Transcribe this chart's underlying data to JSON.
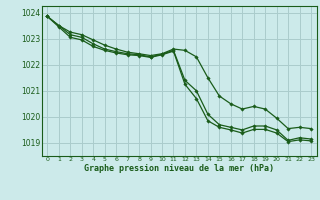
{
  "title": "Graphe pression niveau de la mer (hPa)",
  "bg_color": "#cceaea",
  "grid_color": "#aacccc",
  "line_color": "#1a5c1a",
  "marker_color": "#1a5c1a",
  "xlim": [
    -0.5,
    23.5
  ],
  "ylim": [
    1018.5,
    1024.25
  ],
  "yticks": [
    1019,
    1020,
    1021,
    1022,
    1023,
    1024
  ],
  "xticks": [
    0,
    1,
    2,
    3,
    4,
    5,
    6,
    7,
    8,
    9,
    10,
    11,
    12,
    13,
    14,
    15,
    16,
    17,
    18,
    19,
    20,
    21,
    22,
    23
  ],
  "series1_x": [
    0,
    1,
    2,
    3,
    4,
    5,
    6,
    7,
    8,
    9,
    10,
    11,
    12,
    13,
    14,
    15,
    16,
    17,
    18,
    19,
    20,
    21,
    22,
    23
  ],
  "series1_y": [
    1023.85,
    1023.5,
    1023.25,
    1023.15,
    1022.95,
    1022.75,
    1022.6,
    1022.48,
    1022.42,
    1022.35,
    1022.42,
    1022.6,
    1022.55,
    1022.3,
    1021.5,
    1020.8,
    1020.5,
    1020.3,
    1020.4,
    1020.3,
    1019.95,
    1019.55,
    1019.6,
    1019.55
  ],
  "series2_x": [
    0,
    1,
    2,
    3,
    4,
    5,
    6,
    7,
    8,
    9,
    10,
    11,
    12,
    13,
    14,
    15,
    16,
    17,
    18,
    19,
    20,
    21,
    22,
    23
  ],
  "series2_y": [
    1023.85,
    1023.5,
    1023.15,
    1023.05,
    1022.8,
    1022.6,
    1022.5,
    1022.42,
    1022.38,
    1022.3,
    1022.4,
    1022.55,
    1021.4,
    1021.0,
    1020.1,
    1019.7,
    1019.6,
    1019.5,
    1019.65,
    1019.65,
    1019.5,
    1019.1,
    1019.2,
    1019.15
  ],
  "series3_x": [
    0,
    1,
    2,
    3,
    4,
    5,
    6,
    7,
    8,
    9,
    10,
    11,
    12,
    13,
    14,
    15,
    16,
    17,
    18,
    19,
    20,
    21,
    22,
    23
  ],
  "series3_y": [
    1023.85,
    1023.45,
    1023.05,
    1022.95,
    1022.7,
    1022.55,
    1022.45,
    1022.38,
    1022.35,
    1022.28,
    1022.38,
    1022.52,
    1021.25,
    1020.7,
    1019.85,
    1019.6,
    1019.5,
    1019.38,
    1019.52,
    1019.52,
    1019.38,
    1019.05,
    1019.12,
    1019.08
  ]
}
